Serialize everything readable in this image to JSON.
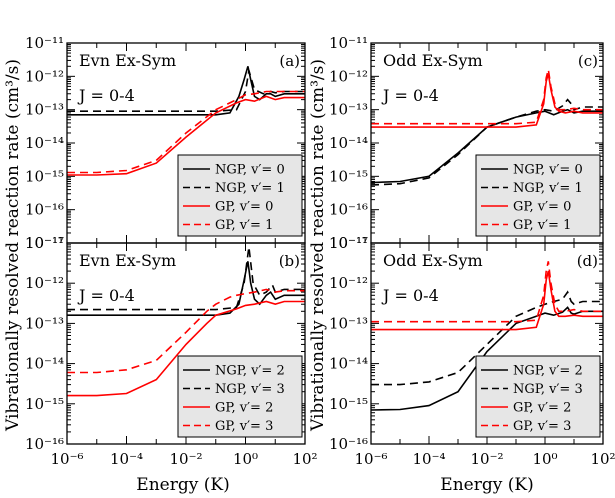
{
  "figure": {
    "shared_xlabel": "Energy (K)",
    "shared_ylabel": "Vibrationally resolved reaction rate (cm³/s)"
  },
  "chart_data": [
    {
      "panel": "(a)",
      "type": "line",
      "title": "Evn Ex-Sym",
      "subtitle": "J = 0-4",
      "xscale": "log",
      "yscale": "log",
      "xlim": [
        1e-06,
        100
      ],
      "ylim": [
        1e-17,
        1e-11
      ],
      "xlabel": "",
      "ylabel": "Vibrationally resolved reaction rate (cm³/s)",
      "legend_position": "bottom-right",
      "series": [
        {
          "name": "NGP, v′= 0",
          "color": "#000000",
          "dash": "solid",
          "x": [
            1e-06,
            0.1,
            0.3,
            0.6,
            0.9,
            1.2,
            1.5,
            2,
            3,
            5,
            7,
            10,
            20,
            50,
            100
          ],
          "y": [
            7e-14,
            7e-14,
            8e-14,
            2.5e-13,
            8e-13,
            2e-12,
            8e-13,
            2.5e-13,
            2e-13,
            3e-13,
            3e-13,
            2.5e-13,
            3e-13,
            3e-13,
            3e-13
          ]
        },
        {
          "name": "NGP, v′= 1",
          "color": "#000000",
          "dash": "dashed",
          "x": [
            1e-06,
            0.1,
            0.5,
            1,
            1.3,
            2,
            4,
            7,
            10,
            20,
            50,
            100
          ],
          "y": [
            9e-14,
            9e-14,
            1e-13,
            3.5e-13,
            1.5e-12,
            4e-13,
            3e-13,
            3.5e-13,
            3.2e-13,
            3.5e-13,
            3.5e-13,
            3.5e-13
          ]
        },
        {
          "name": "GP, v′= 0",
          "color": "#ff0000",
          "dash": "solid",
          "x": [
            1e-06,
            1e-05,
            0.0001,
            0.001,
            0.01,
            0.1,
            0.5,
            1,
            2,
            5,
            10,
            20,
            50,
            100
          ],
          "y": [
            1.1e-15,
            1.1e-15,
            1.2e-15,
            2.5e-15,
            1.5e-14,
            8e-14,
            1.6e-13,
            2e-13,
            1.8e-13,
            2.5e-13,
            2e-13,
            2.3e-13,
            2.3e-13,
            2.3e-13
          ]
        },
        {
          "name": "GP, v′= 1",
          "color": "#ff0000",
          "dash": "dashed",
          "x": [
            1e-06,
            1e-05,
            0.0001,
            0.001,
            0.01,
            0.1,
            0.5,
            1,
            2,
            5,
            10,
            20,
            50,
            100
          ],
          "y": [
            1.3e-15,
            1.3e-15,
            1.5e-15,
            3e-15,
            2e-14,
            1e-13,
            2e-13,
            2.8e-13,
            3e-13,
            3.5e-13,
            3.5e-13,
            3.5e-13,
            3.5e-13,
            3.5e-13
          ]
        }
      ]
    },
    {
      "panel": "(b)",
      "type": "line",
      "title": "Evn Ex-Sym",
      "subtitle": "J = 0-4",
      "xscale": "log",
      "yscale": "log",
      "xlim": [
        1e-06,
        100
      ],
      "ylim": [
        1e-16,
        1e-11
      ],
      "xlabel": "Energy (K)",
      "ylabel": "Vibrationally resolved reaction rate (cm³/s)",
      "legend_position": "bottom-right",
      "series": [
        {
          "name": "NGP, v′= 2",
          "color": "#000000",
          "dash": "solid",
          "x": [
            1e-06,
            0.1,
            0.3,
            0.6,
            0.9,
            1.2,
            1.5,
            2,
            3,
            5,
            7,
            10,
            20,
            50,
            100
          ],
          "y": [
            1.6e-13,
            1.6e-13,
            1.8e-13,
            3e-13,
            1.2e-12,
            3.5e-12,
            1e-12,
            4e-13,
            3e-13,
            5e-13,
            6e-13,
            4e-13,
            5e-13,
            5e-13,
            5e-13
          ]
        },
        {
          "name": "NGP, v′= 3",
          "color": "#000000",
          "dash": "dashed",
          "x": [
            1e-06,
            0.1,
            0.5,
            0.9,
            1.3,
            1.8,
            3,
            5,
            8,
            10,
            20,
            50,
            100
          ],
          "y": [
            2.2e-13,
            2.2e-13,
            2.5e-13,
            1e-12,
            8e-12,
            1e-12,
            5e-13,
            6e-13,
            9e-13,
            6e-13,
            7e-13,
            7e-13,
            7e-13
          ]
        },
        {
          "name": "GP, v′= 2",
          "color": "#ff0000",
          "dash": "solid",
          "x": [
            1e-06,
            1e-05,
            0.0001,
            0.001,
            0.01,
            0.05,
            0.1,
            0.5,
            1,
            2,
            5,
            10,
            20,
            50,
            100
          ],
          "y": [
            1.6e-15,
            1.6e-15,
            1.8e-15,
            4e-15,
            3e-14,
            1e-13,
            1.6e-13,
            2.3e-13,
            2.8e-13,
            3e-13,
            3.5e-13,
            3e-13,
            3.5e-13,
            3.5e-13,
            3.5e-13
          ]
        },
        {
          "name": "GP, v′= 3",
          "color": "#ff0000",
          "dash": "dashed",
          "x": [
            1e-06,
            1e-05,
            0.0001,
            0.001,
            0.01,
            0.05,
            0.1,
            0.3,
            0.5,
            1,
            2,
            5,
            10,
            20,
            50,
            100
          ],
          "y": [
            6e-15,
            6e-15,
            7e-15,
            1.2e-14,
            6e-14,
            2e-13,
            3e-13,
            4.5e-13,
            5e-13,
            5.5e-13,
            6e-13,
            7e-13,
            6e-13,
            6.5e-13,
            6.5e-13,
            6.5e-13
          ]
        }
      ]
    },
    {
      "panel": "(c)",
      "type": "line",
      "title": "Odd Ex-Sym",
      "subtitle": "J = 0-4",
      "xscale": "log",
      "yscale": "log",
      "xlim": [
        1e-06,
        100
      ],
      "ylim": [
        1e-17,
        1e-11
      ],
      "xlabel": "",
      "ylabel": "Vibrationally resolved reaction rate (cm³/s)",
      "legend_position": "bottom-right",
      "series": [
        {
          "name": "NGP, v′= 0",
          "color": "#000000",
          "dash": "solid",
          "x": [
            1e-06,
            1e-05,
            0.0001,
            0.001,
            0.01,
            0.1,
            0.5,
            1,
            2,
            4,
            6,
            10,
            20,
            50,
            100
          ],
          "y": [
            6.5e-16,
            7e-16,
            1e-15,
            5e-15,
            3e-14,
            6e-14,
            8e-14,
            9e-14,
            7e-14,
            9e-14,
            1e-13,
            8e-14,
            9e-14,
            9e-14,
            9e-14
          ]
        },
        {
          "name": "NGP, v′= 1",
          "color": "#000000",
          "dash": "dashed",
          "x": [
            1e-06,
            1e-05,
            0.0001,
            0.001,
            0.01,
            0.1,
            0.5,
            1,
            2,
            4,
            6,
            8,
            10,
            20,
            50,
            100
          ],
          "y": [
            5.5e-16,
            6e-16,
            9e-16,
            4.5e-15,
            3e-14,
            6e-14,
            9e-14,
            1e-13,
            9e-14,
            1.3e-13,
            2e-13,
            1.5e-13,
            1e-13,
            1.2e-13,
            1.2e-13,
            1.2e-13
          ]
        },
        {
          "name": "GP, v′= 0",
          "color": "#ff0000",
          "dash": "solid",
          "x": [
            1e-06,
            0.1,
            0.5,
            0.9,
            1.1,
            1.3,
            1.6,
            2.2,
            3,
            5,
            10,
            20,
            50,
            100
          ],
          "y": [
            3e-14,
            3e-14,
            3.5e-14,
            1.5e-13,
            7e-13,
            1.2e-12,
            4e-13,
            1.2e-13,
            9e-14,
            8e-14,
            9e-14,
            8e-14,
            8e-14,
            8e-14
          ]
        },
        {
          "name": "GP, v′= 1",
          "color": "#ff0000",
          "dash": "dashed",
          "x": [
            1e-06,
            0.1,
            0.5,
            0.9,
            1.1,
            1.3,
            1.6,
            2.2,
            3,
            5,
            10,
            20,
            50,
            100
          ],
          "y": [
            3.8e-14,
            3.8e-14,
            4.2e-14,
            2e-13,
            9e-13,
            1.6e-12,
            5e-13,
            1.5e-13,
            1e-13,
            1e-13,
            1.1e-13,
            1e-13,
            1e-13,
            1e-13
          ]
        }
      ]
    },
    {
      "panel": "(d)",
      "type": "line",
      "title": "Odd Ex-Sym",
      "subtitle": "J = 0-4",
      "xscale": "log",
      "yscale": "log",
      "xlim": [
        1e-06,
        100
      ],
      "ylim": [
        1e-16,
        1e-11
      ],
      "xlabel": "Energy (K)",
      "ylabel": "Vibrationally resolved reaction rate (cm³/s)",
      "legend_position": "bottom-right",
      "series": [
        {
          "name": "NGP, v′= 2",
          "color": "#000000",
          "dash": "solid",
          "x": [
            1e-06,
            1e-05,
            0.0001,
            0.001,
            0.01,
            0.1,
            0.5,
            1,
            2,
            4,
            6,
            8,
            10,
            20,
            50,
            100
          ],
          "y": [
            7e-16,
            7.2e-16,
            9e-16,
            2e-15,
            2e-14,
            1e-13,
            1.5e-13,
            1.8e-13,
            1.6e-13,
            1.9e-13,
            2.5e-13,
            1.8e-13,
            1.7e-13,
            2e-13,
            2e-13,
            2e-13
          ]
        },
        {
          "name": "NGP, v′= 3",
          "color": "#000000",
          "dash": "dashed",
          "x": [
            1e-06,
            1e-05,
            0.0001,
            0.001,
            0.01,
            0.1,
            0.5,
            1,
            2,
            4,
            6,
            8,
            10,
            20,
            50,
            100
          ],
          "y": [
            3e-15,
            3e-15,
            3.5e-15,
            6e-15,
            3e-14,
            1.5e-13,
            2.5e-13,
            3e-13,
            3.5e-13,
            4e-13,
            6e-13,
            3.5e-13,
            3e-13,
            3.5e-13,
            3.5e-13,
            3.5e-13
          ]
        },
        {
          "name": "GP, v′= 2",
          "color": "#ff0000",
          "dash": "solid",
          "x": [
            1e-06,
            0.1,
            0.5,
            0.9,
            1.1,
            1.3,
            1.6,
            2.2,
            3,
            5,
            10,
            20,
            50,
            100
          ],
          "y": [
            7e-14,
            7e-14,
            8e-14,
            3e-13,
            1.2e-12,
            2e-12,
            7e-13,
            2e-13,
            1.5e-13,
            1.5e-13,
            1.6e-13,
            1.5e-13,
            1.5e-13,
            1.5e-13
          ]
        },
        {
          "name": "GP, v′= 3",
          "color": "#ff0000",
          "dash": "dashed",
          "x": [
            1e-06,
            0.1,
            0.5,
            0.9,
            1.1,
            1.3,
            1.6,
            2.2,
            3,
            5,
            10,
            20,
            50,
            100
          ],
          "y": [
            1.1e-13,
            1.1e-13,
            1.2e-13,
            5e-13,
            2e-12,
            3.5e-12,
            1e-12,
            3e-13,
            2e-13,
            2e-13,
            2.2e-13,
            2e-13,
            2e-13,
            2e-13
          ]
        }
      ]
    }
  ]
}
